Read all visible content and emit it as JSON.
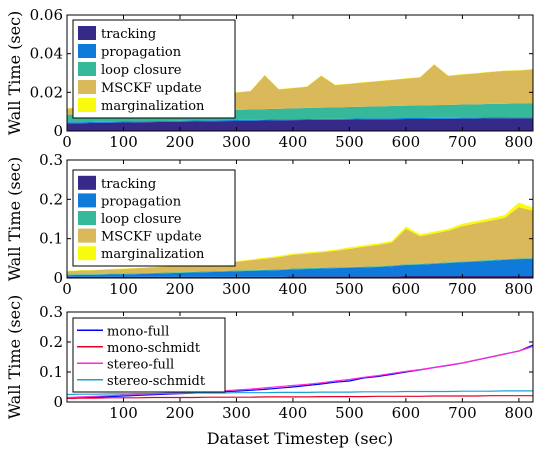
{
  "chart_data": [
    {
      "type": "area",
      "stacked": true,
      "ylabel": "Wall Time (sec)",
      "xlabel": "",
      "xlim": [
        0,
        825
      ],
      "ylim": [
        0,
        0.06
      ],
      "xticks": [
        0,
        100,
        200,
        300,
        400,
        500,
        600,
        700,
        800
      ],
      "xtick_labels": [
        "0",
        "100",
        "200",
        "300",
        "400",
        "500",
        "600",
        "700",
        "800"
      ],
      "yticks": [
        0,
        0.02,
        0.04,
        0.06
      ],
      "ytick_labels": [
        "0",
        "0.02",
        "0.04",
        "0.06"
      ],
      "legend_position": "top-left",
      "x": [
        0,
        25,
        50,
        75,
        100,
        125,
        150,
        175,
        200,
        225,
        250,
        275,
        300,
        325,
        350,
        375,
        400,
        425,
        450,
        475,
        500,
        525,
        550,
        575,
        600,
        625,
        650,
        675,
        700,
        725,
        750,
        775,
        800,
        825
      ],
      "series": [
        {
          "name": "tracking",
          "color": "#352a87",
          "values": [
            0.004,
            0.004,
            0.0042,
            0.0043,
            0.0044,
            0.0045,
            0.0046,
            0.0047,
            0.0048,
            0.0049,
            0.005,
            0.0051,
            0.0052,
            0.0053,
            0.0054,
            0.0055,
            0.0056,
            0.0057,
            0.0058,
            0.0058,
            0.0059,
            0.006,
            0.006,
            0.0061,
            0.0062,
            0.0062,
            0.0063,
            0.0063,
            0.0064,
            0.0064,
            0.0065,
            0.0065,
            0.0066,
            0.0066
          ]
        },
        {
          "name": "propagation",
          "color": "#0f7ad9",
          "values": [
            0.0005,
            0.0005,
            0.0005,
            0.0005,
            0.0005,
            0.0005,
            0.0005,
            0.0005,
            0.0005,
            0.0005,
            0.0005,
            0.0005,
            0.0005,
            0.0005,
            0.0005,
            0.0005,
            0.0005,
            0.0005,
            0.0005,
            0.0005,
            0.0005,
            0.0005,
            0.0005,
            0.0005,
            0.0005,
            0.0005,
            0.0005,
            0.0005,
            0.0005,
            0.0005,
            0.0005,
            0.0005,
            0.0005,
            0.0005
          ]
        },
        {
          "name": "loop closure",
          "color": "#36b89a",
          "values": [
            0.004,
            0.004,
            0.0041,
            0.0042,
            0.0043,
            0.0044,
            0.0045,
            0.0046,
            0.0047,
            0.0048,
            0.0049,
            0.005,
            0.0052,
            0.0053,
            0.0054,
            0.0055,
            0.0056,
            0.0057,
            0.0058,
            0.0059,
            0.006,
            0.0061,
            0.0062,
            0.0063,
            0.0064,
            0.0065,
            0.0066,
            0.0067,
            0.0068,
            0.0069,
            0.007,
            0.0071,
            0.0072,
            0.0073
          ]
        },
        {
          "name": "MSCKF update",
          "color": "#d9b959",
          "values": [
            0.003,
            0.004,
            0.004,
            0.0045,
            0.005,
            0.0055,
            0.006,
            0.0065,
            0.007,
            0.0075,
            0.008,
            0.0085,
            0.009,
            0.0095,
            0.0175,
            0.01,
            0.0105,
            0.011,
            0.0165,
            0.0115,
            0.012,
            0.0125,
            0.013,
            0.0135,
            0.014,
            0.0145,
            0.021,
            0.015,
            0.0155,
            0.016,
            0.0165,
            0.017,
            0.017,
            0.0175
          ]
        },
        {
          "name": "marginalization",
          "color": "#f9fb0e",
          "values": [
            0.0002,
            0.0002,
            0.0002,
            0.0002,
            0.0002,
            0.0002,
            0.0002,
            0.0002,
            0.0002,
            0.0002,
            0.0002,
            0.0002,
            0.0002,
            0.0002,
            0.0002,
            0.0002,
            0.0002,
            0.0002,
            0.0002,
            0.0002,
            0.0002,
            0.0002,
            0.0002,
            0.0002,
            0.0002,
            0.0002,
            0.0002,
            0.0002,
            0.0002,
            0.0002,
            0.0002,
            0.0002,
            0.0002,
            0.0002
          ]
        }
      ]
    },
    {
      "type": "area",
      "stacked": true,
      "ylabel": "Wall Time (sec)",
      "xlabel": "",
      "xlim": [
        0,
        825
      ],
      "ylim": [
        0,
        0.3
      ],
      "xticks": [
        0,
        100,
        200,
        300,
        400,
        500,
        600,
        700,
        800
      ],
      "xtick_labels": [
        "0",
        "100",
        "200",
        "300",
        "400",
        "500",
        "600",
        "700",
        "800"
      ],
      "yticks": [
        0,
        0.1,
        0.2,
        0.3
      ],
      "ytick_labels": [
        "0",
        "0.1",
        "0.2",
        "0.3"
      ],
      "legend_position": "top-left",
      "x": [
        0,
        25,
        50,
        75,
        100,
        125,
        150,
        175,
        200,
        225,
        250,
        275,
        300,
        325,
        350,
        375,
        400,
        425,
        450,
        475,
        500,
        525,
        550,
        575,
        600,
        625,
        650,
        675,
        700,
        725,
        750,
        775,
        800,
        825
      ],
      "series": [
        {
          "name": "tracking",
          "color": "#352a87",
          "values": [
            0.003,
            0.003,
            0.003,
            0.003,
            0.003,
            0.003,
            0.003,
            0.003,
            0.003,
            0.003,
            0.003,
            0.003,
            0.003,
            0.003,
            0.003,
            0.003,
            0.004,
            0.004,
            0.004,
            0.004,
            0.004,
            0.004,
            0.004,
            0.004,
            0.005,
            0.005,
            0.005,
            0.005,
            0.005,
            0.005,
            0.005,
            0.005,
            0.005,
            0.005
          ]
        },
        {
          "name": "propagation",
          "color": "#0f7ad9",
          "values": [
            0.004,
            0.005,
            0.005,
            0.006,
            0.006,
            0.007,
            0.008,
            0.009,
            0.01,
            0.011,
            0.012,
            0.013,
            0.014,
            0.015,
            0.016,
            0.017,
            0.018,
            0.019,
            0.02,
            0.021,
            0.022,
            0.023,
            0.024,
            0.026,
            0.028,
            0.029,
            0.031,
            0.033,
            0.035,
            0.037,
            0.039,
            0.041,
            0.043,
            0.044
          ]
        },
        {
          "name": "loop closure",
          "color": "#36b89a",
          "values": [
            0.002,
            0.002,
            0.002,
            0.002,
            0.002,
            0.002,
            0.002,
            0.002,
            0.002,
            0.002,
            0.002,
            0.002,
            0.002,
            0.002,
            0.002,
            0.002,
            0.002,
            0.002,
            0.002,
            0.002,
            0.002,
            0.002,
            0.002,
            0.002,
            0.002,
            0.002,
            0.002,
            0.002,
            0.002,
            0.002,
            0.002,
            0.002,
            0.002,
            0.002
          ]
        },
        {
          "name": "MSCKF update",
          "color": "#d9b959",
          "values": [
            0.008,
            0.009,
            0.01,
            0.011,
            0.012,
            0.013,
            0.014,
            0.015,
            0.016,
            0.017,
            0.018,
            0.02,
            0.022,
            0.025,
            0.028,
            0.031,
            0.035,
            0.037,
            0.039,
            0.042,
            0.046,
            0.05,
            0.054,
            0.058,
            0.09,
            0.07,
            0.075,
            0.08,
            0.09,
            0.095,
            0.1,
            0.105,
            0.13,
            0.12
          ]
        },
        {
          "name": "marginalization",
          "color": "#f9fb0e",
          "values": [
            0.001,
            0.001,
            0.001,
            0.001,
            0.001,
            0.001,
            0.001,
            0.001,
            0.002,
            0.002,
            0.002,
            0.002,
            0.002,
            0.002,
            0.003,
            0.003,
            0.003,
            0.003,
            0.003,
            0.003,
            0.004,
            0.004,
            0.004,
            0.004,
            0.006,
            0.005,
            0.005,
            0.005,
            0.006,
            0.006,
            0.006,
            0.007,
            0.012,
            0.008
          ]
        }
      ]
    },
    {
      "type": "line",
      "ylabel": "Wall Time (sec)",
      "xlabel": "Dataset Timestep (sec)",
      "xlim": [
        0,
        825
      ],
      "ylim": [
        0,
        0.3
      ],
      "xticks": [
        100,
        200,
        300,
        400,
        500,
        600,
        700,
        800
      ],
      "xtick_labels": [
        "100",
        "200",
        "300",
        "400",
        "500",
        "600",
        "700",
        "800"
      ],
      "yticks": [
        0,
        0.1,
        0.2,
        0.3
      ],
      "ytick_labels": [
        "0",
        "0.1",
        "0.2",
        "0.3"
      ],
      "legend_position": "top-left",
      "x": [
        0,
        25,
        50,
        75,
        100,
        125,
        150,
        175,
        200,
        225,
        250,
        275,
        300,
        325,
        350,
        375,
        400,
        425,
        450,
        475,
        500,
        525,
        550,
        575,
        600,
        625,
        650,
        675,
        700,
        725,
        750,
        775,
        800,
        825
      ],
      "series": [
        {
          "name": "mono-full",
          "color": "#0000ff",
          "values": [
            0.012,
            0.014,
            0.016,
            0.018,
            0.02,
            0.022,
            0.024,
            0.026,
            0.028,
            0.03,
            0.032,
            0.034,
            0.036,
            0.039,
            0.042,
            0.046,
            0.05,
            0.055,
            0.06,
            0.066,
            0.07,
            0.08,
            0.085,
            0.092,
            0.1,
            0.107,
            0.115,
            0.122,
            0.13,
            0.14,
            0.15,
            0.16,
            0.17,
            0.19
          ]
        },
        {
          "name": "mono-schmidt",
          "color": "#e60026",
          "values": [
            0.012,
            0.013,
            0.013,
            0.014,
            0.014,
            0.014,
            0.015,
            0.015,
            0.015,
            0.015,
            0.016,
            0.016,
            0.016,
            0.016,
            0.017,
            0.017,
            0.017,
            0.017,
            0.018,
            0.018,
            0.018,
            0.018,
            0.019,
            0.019,
            0.019,
            0.019,
            0.02,
            0.02,
            0.02,
            0.02,
            0.021,
            0.021,
            0.021,
            0.021
          ]
        },
        {
          "name": "stereo-full",
          "color": "#ff2ad4",
          "values": [
            0.015,
            0.017,
            0.019,
            0.021,
            0.023,
            0.025,
            0.027,
            0.029,
            0.031,
            0.033,
            0.035,
            0.037,
            0.04,
            0.043,
            0.047,
            0.051,
            0.055,
            0.059,
            0.064,
            0.07,
            0.075,
            0.082,
            0.088,
            0.095,
            0.102,
            0.108,
            0.115,
            0.123,
            0.13,
            0.14,
            0.15,
            0.16,
            0.17,
            0.185
          ]
        },
        {
          "name": "stereo-schmidt",
          "color": "#1aa0d8",
          "values": [
            0.025,
            0.026,
            0.026,
            0.027,
            0.027,
            0.028,
            0.028,
            0.029,
            0.029,
            0.03,
            0.03,
            0.03,
            0.031,
            0.031,
            0.031,
            0.032,
            0.032,
            0.032,
            0.033,
            0.033,
            0.033,
            0.034,
            0.034,
            0.034,
            0.035,
            0.035,
            0.035,
            0.035,
            0.036,
            0.036,
            0.036,
            0.037,
            0.037,
            0.037
          ]
        }
      ]
    }
  ]
}
